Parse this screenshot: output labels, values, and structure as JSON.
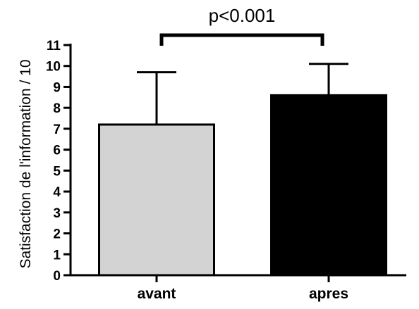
{
  "chart_data": {
    "type": "bar",
    "categories": [
      "avant",
      "apres"
    ],
    "values": [
      7.2,
      8.6
    ],
    "errors": [
      2.5,
      1.5
    ],
    "colors": [
      "#d3d3d3",
      "#000000"
    ],
    "ylabel": "Satisfaction de l'information / 10",
    "xlabel": "",
    "ylim": [
      0,
      11
    ],
    "yticks": [
      0,
      1,
      2,
      3,
      4,
      5,
      6,
      7,
      8,
      9,
      10,
      11
    ],
    "grid": false,
    "significance": {
      "label": "p<0.001",
      "between": [
        0,
        1
      ]
    }
  }
}
